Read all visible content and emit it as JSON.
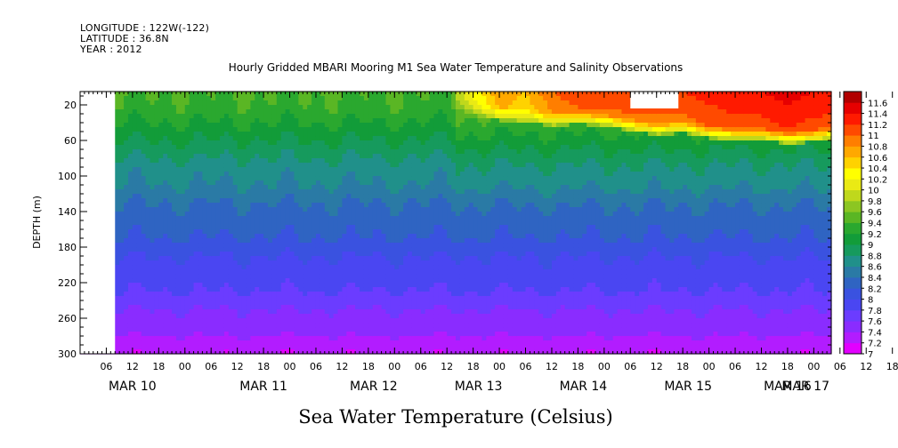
{
  "header": {
    "longitude": "LONGITUDE : 122W(-122)",
    "latitude": "LATITUDE : 36.8N",
    "year": "YEAR : 2012"
  },
  "chart_data": {
    "type": "heatmap",
    "title": "Hourly Gridded MBARI Mooring M1 Sea Water Temperature and Salinity Observations",
    "subtitle": "Sea Water Temperature (Celsius)",
    "ylabel": "DEPTH (m)",
    "yticks": [
      20,
      60,
      100,
      140,
      180,
      220,
      260,
      300
    ],
    "ylim": [
      300,
      5
    ],
    "xlim_hours": [
      0,
      172
    ],
    "xticks_hours": [
      "06",
      "12",
      "18",
      "00",
      "06",
      "12",
      "18",
      "00",
      "06",
      "12",
      "18",
      "00",
      "06",
      "12",
      "18",
      "00",
      "06",
      "12",
      "18",
      "00",
      "06",
      "12",
      "18",
      "00",
      "06",
      "12",
      "18",
      "00",
      "06",
      "12",
      "18",
      "00"
    ],
    "date_labels": [
      "MAR 10",
      "MAR 11",
      "MAR 12",
      "MAR 13",
      "MAR 14",
      "MAR 15",
      "MAR 16",
      "MAR 17"
    ],
    "colorbar": {
      "levels": [
        7,
        7.2,
        7.4,
        7.6,
        7.8,
        8,
        8.2,
        8.4,
        8.6,
        8.8,
        9,
        9.2,
        9.4,
        9.6,
        9.8,
        10,
        10.2,
        10.4,
        10.6,
        10.8,
        11,
        11.2,
        11.4,
        11.6
      ],
      "colors": [
        "#e200ff",
        "#b21cff",
        "#8a2cff",
        "#6b3cff",
        "#4a46f2",
        "#3a52e0",
        "#2f64c2",
        "#2a7aa5",
        "#20908a",
        "#169a5d",
        "#129c39",
        "#2aa82f",
        "#5ab624",
        "#8cc622",
        "#bfd81c",
        "#eaea14",
        "#ffff00",
        "#ffd200",
        "#ffa800",
        "#ff7e00",
        "#ff4a00",
        "#ff1a00",
        "#e60000",
        "#b10000"
      ]
    },
    "surface_profile": {
      "hours": [
        0,
        6,
        12,
        18,
        24,
        30,
        36,
        42,
        48,
        54,
        60,
        66,
        72,
        78,
        84,
        90,
        96,
        102,
        108,
        114,
        120,
        126,
        132,
        138,
        144,
        150,
        156,
        162,
        168,
        172
      ],
      "temp_at_10m": [
        9.3,
        9.4,
        9.3,
        9.4,
        9.2,
        9.4,
        9.3,
        9.4,
        9.5,
        9.6,
        9.4,
        9.5,
        9.3,
        9.4,
        9.6,
        10.2,
        10.8,
        10.6,
        11.0,
        11.2,
        11.2,
        11.2,
        11.2,
        11.2,
        11.3,
        11.4,
        11.4,
        11.5,
        11.4,
        11.4
      ],
      "depth_of_10C": [
        5,
        5,
        5,
        5,
        5,
        5,
        5,
        5,
        5,
        5,
        5,
        5,
        5,
        5,
        5,
        18,
        24,
        26,
        30,
        28,
        30,
        36,
        40,
        38,
        44,
        46,
        46,
        50,
        48,
        45
      ],
      "missing_data": [
        {
          "hour_start": 0,
          "hour_end": 8,
          "depth_start": 5,
          "depth_end": 300
        },
        {
          "hour_start": 126,
          "hour_end": 137,
          "depth_start": 5,
          "depth_end": 24
        }
      ]
    },
    "depth_profile": {
      "depths": [
        10,
        30,
        50,
        70,
        90,
        110,
        130,
        150,
        170,
        190,
        210,
        230,
        250,
        270,
        290,
        300
      ],
      "temp": [
        9.4,
        9.3,
        9.1,
        8.9,
        8.7,
        8.6,
        8.4,
        8.3,
        8.2,
        8.0,
        7.9,
        7.8,
        7.6,
        7.5,
        7.3,
        7.2
      ]
    }
  }
}
